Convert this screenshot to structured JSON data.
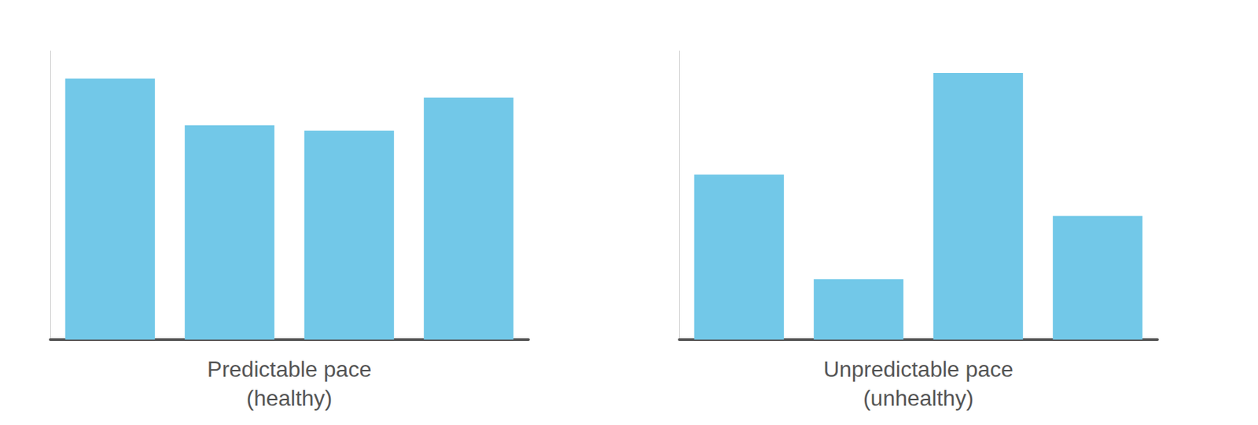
{
  "chart_data": [
    {
      "type": "bar",
      "xlabel": "Predictable pace\n(healthy)",
      "categories": [
        null,
        null,
        null,
        null
      ],
      "values": [
        0.95,
        0.78,
        0.76,
        0.88
      ],
      "color": "#72c8e8",
      "ylim": [
        0,
        1.05
      ],
      "tick_labels": false,
      "grid": false
    },
    {
      "type": "bar",
      "xlabel": "Unpredictable pace\n(unhealthy)",
      "categories": [
        null,
        null,
        null,
        null
      ],
      "values": [
        0.6,
        0.22,
        0.97,
        0.45
      ],
      "color": "#72c8e8",
      "ylim": [
        0,
        1.05
      ],
      "tick_labels": false,
      "grid": false
    }
  ]
}
